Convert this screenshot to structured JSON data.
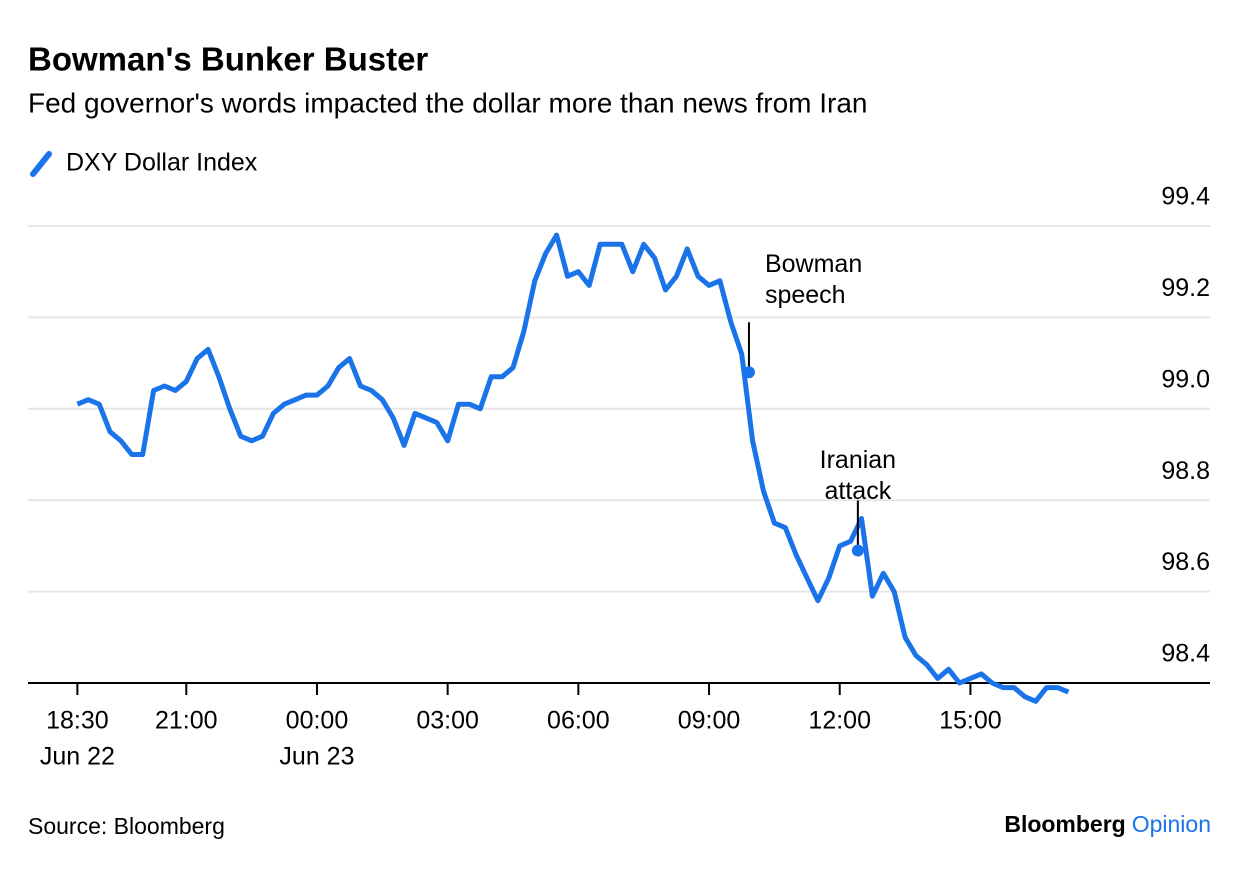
{
  "chart_data": {
    "type": "line",
    "title": "Bowman's Bunker Buster",
    "subtitle": "Fed governor's words impacted the dollar more than news from Iran",
    "source": "Source: Bloomberg",
    "logo": {
      "brand": "Bloomberg",
      "product": "Opinion"
    },
    "x": [
      "Jun 22 18:30",
      "Jun 22 18:45",
      "Jun 22 19:00",
      "Jun 22 19:15",
      "Jun 22 19:30",
      "Jun 22 19:45",
      "Jun 22 20:00",
      "Jun 22 20:15",
      "Jun 22 20:30",
      "Jun 22 20:45",
      "Jun 22 21:00",
      "Jun 22 21:15",
      "Jun 22 21:30",
      "Jun 22 21:45",
      "Jun 22 22:00",
      "Jun 22 22:15",
      "Jun 22 22:30",
      "Jun 22 22:45",
      "Jun 22 23:00",
      "Jun 22 23:15",
      "Jun 22 23:30",
      "Jun 22 23:45",
      "Jun 23 00:00",
      "Jun 23 00:15",
      "Jun 23 00:30",
      "Jun 23 00:45",
      "Jun 23 01:00",
      "Jun 23 01:15",
      "Jun 23 01:30",
      "Jun 23 01:45",
      "Jun 23 02:00",
      "Jun 23 02:15",
      "Jun 23 02:30",
      "Jun 23 02:45",
      "Jun 23 03:00",
      "Jun 23 03:15",
      "Jun 23 03:30",
      "Jun 23 03:45",
      "Jun 23 04:00",
      "Jun 23 04:15",
      "Jun 23 04:30",
      "Jun 23 04:45",
      "Jun 23 05:00",
      "Jun 23 05:15",
      "Jun 23 05:30",
      "Jun 23 05:45",
      "Jun 23 06:00",
      "Jun 23 06:15",
      "Jun 23 06:30",
      "Jun 23 06:45",
      "Jun 23 07:00",
      "Jun 23 07:15",
      "Jun 23 07:30",
      "Jun 23 07:45",
      "Jun 23 08:00",
      "Jun 23 08:15",
      "Jun 23 08:30",
      "Jun 23 08:45",
      "Jun 23 09:00",
      "Jun 23 09:15",
      "Jun 23 09:30",
      "Jun 23 09:45",
      "Jun 23 10:00",
      "Jun 23 10:15",
      "Jun 23 10:30",
      "Jun 23 10:45",
      "Jun 23 11:00",
      "Jun 23 11:15",
      "Jun 23 11:30",
      "Jun 23 11:45",
      "Jun 23 12:00",
      "Jun 23 12:15",
      "Jun 23 12:30",
      "Jun 23 12:45",
      "Jun 23 13:00",
      "Jun 23 13:15",
      "Jun 23 13:30",
      "Jun 23 13:45",
      "Jun 23 14:00",
      "Jun 23 14:15",
      "Jun 23 14:30",
      "Jun 23 14:45",
      "Jun 23 15:00",
      "Jun 23 15:15",
      "Jun 23 15:30",
      "Jun 23 15:45",
      "Jun 23 16:00",
      "Jun 23 16:15",
      "Jun 23 16:30",
      "Jun 23 16:45",
      "Jun 23 17:00",
      "Jun 23 17:15"
    ],
    "series": [
      {
        "name": "DXY Dollar Index",
        "color": "#1a73e8",
        "values": [
          99.01,
          99.02,
          99.01,
          98.95,
          98.93,
          98.9,
          98.9,
          99.04,
          99.05,
          99.04,
          99.06,
          99.11,
          99.13,
          99.07,
          99.0,
          98.94,
          98.93,
          98.94,
          98.99,
          99.01,
          99.02,
          99.03,
          99.03,
          99.05,
          99.09,
          99.11,
          99.05,
          99.04,
          99.02,
          98.98,
          98.92,
          98.99,
          98.98,
          98.97,
          98.93,
          99.01,
          99.01,
          99.0,
          99.07,
          99.07,
          99.09,
          99.17,
          99.28,
          99.34,
          99.38,
          99.29,
          99.3,
          99.27,
          99.36,
          99.36,
          99.36,
          99.3,
          99.36,
          99.33,
          99.26,
          99.29,
          99.35,
          99.29,
          99.27,
          99.28,
          99.19,
          99.12,
          98.93,
          98.82,
          98.75,
          98.74,
          98.68,
          98.63,
          98.58,
          98.63,
          98.7,
          98.71,
          98.76,
          98.59,
          98.64,
          98.6,
          98.5,
          98.46,
          98.44,
          98.41,
          98.43,
          98.4,
          98.41,
          98.42,
          98.4,
          98.39,
          98.39,
          98.37,
          98.36,
          98.39,
          98.39,
          98.38
        ]
      }
    ],
    "xlim": [
      "Jun 22 17:22",
      "Jun 23 20:30"
    ],
    "xticks": [
      {
        "value": "Jun 22 18:30",
        "label": "18:30",
        "sublabel": "Jun 22"
      },
      {
        "value": "Jun 22 21:00",
        "label": "21:00"
      },
      {
        "value": "Jun 23 00:00",
        "label": "00:00",
        "sublabel": "Jun 23"
      },
      {
        "value": "Jun 23 03:00",
        "label": "03:00"
      },
      {
        "value": "Jun 23 06:00",
        "label": "06:00"
      },
      {
        "value": "Jun 23 09:00",
        "label": "09:00"
      },
      {
        "value": "Jun 23 12:00",
        "label": "12:00"
      },
      {
        "value": "Jun 23 15:00",
        "label": "15:00"
      }
    ],
    "ylim": [
      98.4,
      99.4
    ],
    "yticks": [
      {
        "value": 98.4,
        "label": "98.4"
      },
      {
        "value": 98.6,
        "label": "98.6"
      },
      {
        "value": 98.8,
        "label": "98.8"
      },
      {
        "value": 99.0,
        "label": "99.0"
      },
      {
        "value": 99.2,
        "label": "99.2"
      },
      {
        "value": 99.4,
        "label": "99.4"
      }
    ],
    "grid": true,
    "annotations": [
      {
        "text": [
          "Bowman",
          "speech"
        ],
        "x": "Jun 23 09:55",
        "y": 99.08
      },
      {
        "text": [
          "Iranian",
          "attack"
        ],
        "x": "Jun 23 12:25",
        "y": 98.69
      }
    ]
  }
}
